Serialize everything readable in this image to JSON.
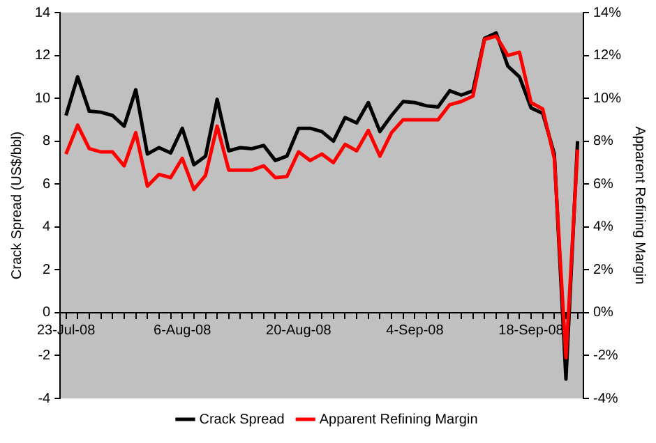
{
  "chart_data": {
    "type": "line",
    "xlabel": null,
    "ylabel": "Crack Spread (US$/bbl)",
    "y2label": "Apparent Refining Margin",
    "categories": [
      "23-Jul-08",
      null,
      null,
      null,
      null,
      null,
      null,
      null,
      null,
      null,
      "6-Aug-08",
      null,
      null,
      null,
      null,
      null,
      null,
      null,
      null,
      null,
      "20-Aug-08",
      null,
      null,
      null,
      null,
      null,
      null,
      null,
      null,
      null,
      "4-Sep-08",
      null,
      null,
      null,
      null,
      null,
      null,
      null,
      null,
      null,
      "18-Sep-08",
      null,
      null,
      null,
      null
    ],
    "series": [
      {
        "name": "Crack Spread",
        "color": "#000000",
        "values": [
          9.2,
          11.0,
          9.4,
          9.35,
          9.2,
          8.7,
          10.4,
          7.4,
          7.7,
          7.45,
          8.6,
          6.9,
          7.3,
          9.95,
          7.55,
          7.7,
          7.65,
          7.8,
          7.1,
          7.3,
          8.6,
          8.6,
          8.45,
          8.0,
          9.1,
          8.85,
          9.8,
          8.45,
          9.2,
          9.85,
          9.8,
          9.65,
          9.6,
          10.35,
          10.15,
          10.35,
          12.8,
          13.05,
          11.5,
          11.0,
          9.55,
          9.3,
          7.4,
          -3.1,
          8.0
        ]
      },
      {
        "name": "Apparent Refining Margin",
        "color": "#ff0000",
        "axis": "y2",
        "values": [
          7.4,
          8.75,
          7.65,
          7.5,
          7.5,
          6.85,
          8.4,
          5.9,
          6.45,
          6.3,
          7.2,
          5.75,
          6.4,
          8.7,
          6.65,
          6.65,
          6.65,
          6.85,
          6.3,
          6.35,
          7.5,
          7.1,
          7.4,
          7.0,
          7.85,
          7.55,
          8.5,
          7.3,
          8.4,
          9.0,
          9.0,
          9.0,
          9.0,
          9.7,
          9.85,
          10.1,
          12.75,
          12.9,
          12.0,
          12.15,
          9.8,
          9.5,
          7.2,
          -2.1,
          7.6
        ]
      }
    ],
    "ylim": [
      -4,
      14
    ],
    "yticks": [
      -4,
      -2,
      0,
      2,
      4,
      6,
      8,
      10,
      12,
      14
    ],
    "y2lim": [
      -4,
      14
    ],
    "y2ticks": [
      {
        "value": -4,
        "label": "-4%"
      },
      {
        "value": -2,
        "label": "-2%"
      },
      {
        "value": 0,
        "label": "0%"
      },
      {
        "value": 2,
        "label": "2%"
      },
      {
        "value": 4,
        "label": "4%"
      },
      {
        "value": 6,
        "label": "6%"
      },
      {
        "value": 8,
        "label": "8%"
      },
      {
        "value": 10,
        "label": "10%"
      },
      {
        "value": 12,
        "label": "12%"
      },
      {
        "value": 14,
        "label": "14%"
      }
    ],
    "grid": false,
    "legend": "bottom",
    "marker": "none",
    "line_style": "solid"
  }
}
